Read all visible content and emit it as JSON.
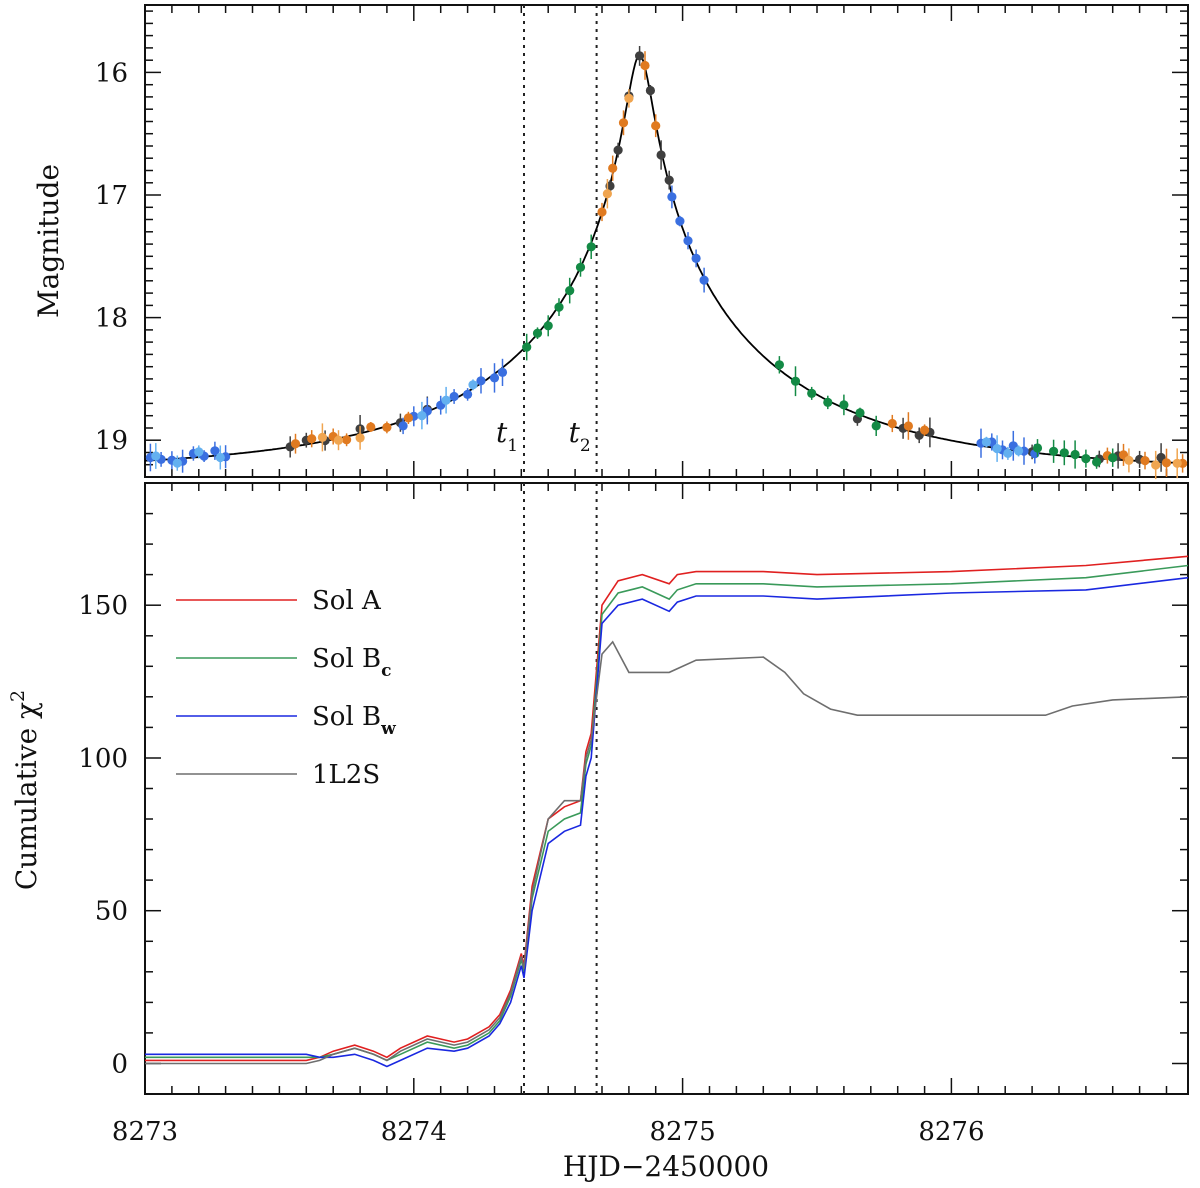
{
  "chart_data": [
    {
      "type": "scatter",
      "panel": "top",
      "ylabel": "Magnitude",
      "xlabel": "",
      "xlim": [
        8273.0,
        8276.88
      ],
      "ylim": [
        19.3,
        15.45
      ],
      "yticks": [
        16,
        17,
        18,
        19
      ],
      "ytick_labels": [
        "16",
        "17",
        "18",
        "19"
      ],
      "annotations": [
        {
          "id": "t1",
          "text": "t",
          "sub": "1",
          "x": 8274.41
        },
        {
          "id": "t2",
          "text": "t",
          "sub": "2",
          "x": 8274.68
        }
      ],
      "model_curve": {
        "name": "model",
        "color": "#000000",
        "t0": 8274.84,
        "u0": 0.044,
        "tE": 1.02,
        "mag_peak": 15.86
      },
      "series": [
        {
          "name": "dataset-gray",
          "color": "#3f3f3f",
          "x": [
            8273.54,
            8273.6,
            8273.67,
            8273.8,
            8273.95,
            8274.05,
            8274.73,
            8274.76,
            8274.8,
            8274.84,
            8274.88,
            8274.92,
            8274.95,
            8275.65,
            8275.82,
            8275.88,
            8275.92,
            8276.3,
            8276.55,
            8276.62,
            8276.7,
            8276.78
          ]
        },
        {
          "name": "dataset-blue",
          "color": "#3a6fe0",
          "x": [
            8273.02,
            8273.06,
            8273.1,
            8273.14,
            8273.18,
            8273.22,
            8273.26,
            8273.3,
            8273.96,
            8274.0,
            8274.05,
            8274.1,
            8274.15,
            8274.2,
            8274.25,
            8274.3,
            8274.33,
            8274.96,
            8274.99,
            8275.02,
            8275.05,
            8275.08,
            8276.11,
            8276.15,
            8276.19,
            8276.23,
            8276.27,
            8276.31
          ]
        },
        {
          "name": "dataset-light-blue",
          "color": "#63b0f0",
          "x": [
            8273.04,
            8273.12,
            8273.2,
            8273.28,
            8274.03,
            8274.12,
            8274.22,
            8276.13,
            8276.17,
            8276.21,
            8276.25
          ]
        },
        {
          "name": "dataset-orange",
          "color": "#e07a20",
          "x": [
            8273.56,
            8273.62,
            8273.7,
            8273.75,
            8273.84,
            8273.9,
            8273.98,
            8274.7,
            8274.74,
            8274.78,
            8274.86,
            8274.9,
            8275.78,
            8275.84,
            8275.9,
            8276.58,
            8276.64,
            8276.72,
            8276.8,
            8276.86
          ]
        },
        {
          "name": "dataset-light-orange",
          "color": "#f0a550",
          "x": [
            8273.66,
            8273.72,
            8273.8,
            8274.72,
            8274.8,
            8276.66,
            8276.76,
            8276.84
          ]
        },
        {
          "name": "dataset-green",
          "color": "#138a45",
          "x": [
            8274.42,
            8274.46,
            8274.5,
            8274.54,
            8274.58,
            8274.62,
            8274.66,
            8275.36,
            8275.42,
            8275.48,
            8275.54,
            8275.6,
            8275.66,
            8275.72,
            8276.32,
            8276.38,
            8276.42,
            8276.46,
            8276.5,
            8276.54,
            8276.6
          ]
        }
      ]
    },
    {
      "type": "line",
      "panel": "bottom",
      "xlabel": "HJD−2450000",
      "ylabel": "Cumulative χ",
      "ylabel_sup": "2",
      "xlim": [
        8273.0,
        8276.88
      ],
      "ylim": [
        -10,
        190
      ],
      "xticks": [
        8273,
        8274,
        8275,
        8276
      ],
      "xtick_labels": [
        "8273",
        "8274",
        "8275",
        "8276"
      ],
      "yticks": [
        0,
        50,
        100,
        150
      ],
      "ytick_labels": [
        "0",
        "50",
        "100",
        "150"
      ],
      "legend_position": "upper-left",
      "series": [
        {
          "name": "Sol A",
          "label_main": "Sol  A",
          "label_sub": "",
          "color": "#e02020",
          "x": [
            8273.0,
            8273.6,
            8273.65,
            8273.7,
            8273.78,
            8273.85,
            8273.9,
            8273.95,
            8274.05,
            8274.15,
            8274.2,
            8274.28,
            8274.32,
            8274.36,
            8274.4,
            8274.41,
            8274.44,
            8274.5,
            8274.56,
            8274.62,
            8274.64,
            8274.66,
            8274.7,
            8274.76,
            8274.85,
            8274.95,
            8274.98,
            8275.05,
            8275.3,
            8275.5,
            8276.0,
            8276.5,
            8276.88
          ],
          "values": [
            1,
            1,
            2,
            4,
            6,
            4,
            2,
            5,
            9,
            7,
            8,
            12,
            16,
            24,
            36,
            32,
            58,
            80,
            84,
            86,
            102,
            108,
            150,
            158,
            160,
            157,
            160,
            161,
            161,
            160,
            161,
            163,
            166
          ]
        },
        {
          "name": "Sol Bc",
          "label_main": "Sol  B",
          "label_sub": "c",
          "color": "#3a9a5a",
          "x": [
            8273.0,
            8273.6,
            8273.65,
            8273.7,
            8273.78,
            8273.85,
            8273.9,
            8273.95,
            8274.05,
            8274.15,
            8274.2,
            8274.28,
            8274.32,
            8274.36,
            8274.4,
            8274.41,
            8274.44,
            8274.5,
            8274.56,
            8274.62,
            8274.64,
            8274.66,
            8274.7,
            8274.76,
            8274.85,
            8274.95,
            8274.98,
            8275.05,
            8275.3,
            8275.5,
            8276.0,
            8276.5,
            8276.88
          ],
          "values": [
            2,
            2,
            2,
            3,
            5,
            3,
            1,
            3,
            7,
            5,
            6,
            10,
            14,
            22,
            34,
            30,
            54,
            76,
            80,
            82,
            98,
            104,
            147,
            154,
            156,
            152,
            155,
            157,
            157,
            156,
            157,
            159,
            163
          ]
        },
        {
          "name": "Sol Bw",
          "label_main": "Sol  B",
          "label_sub": "w",
          "color": "#1a28e0",
          "x": [
            8273.0,
            8273.6,
            8273.65,
            8273.7,
            8273.78,
            8273.85,
            8273.9,
            8273.95,
            8274.05,
            8274.15,
            8274.2,
            8274.28,
            8274.32,
            8274.36,
            8274.4,
            8274.41,
            8274.44,
            8274.5,
            8274.56,
            8274.62,
            8274.64,
            8274.66,
            8274.7,
            8274.76,
            8274.85,
            8274.95,
            8274.98,
            8275.05,
            8275.3,
            8275.5,
            8276.0,
            8276.5,
            8276.88
          ],
          "values": [
            3,
            3,
            2,
            2,
            3,
            1,
            -1,
            1,
            5,
            4,
            5,
            9,
            13,
            20,
            32,
            28,
            50,
            72,
            76,
            78,
            94,
            100,
            144,
            150,
            152,
            148,
            151,
            153,
            153,
            152,
            154,
            155,
            159
          ]
        },
        {
          "name": "1L2S",
          "label_main": "1L2S",
          "label_sub": "",
          "color": "#6e6e6e",
          "x": [
            8273.0,
            8273.6,
            8273.65,
            8273.7,
            8273.78,
            8273.85,
            8273.9,
            8273.95,
            8274.05,
            8274.15,
            8274.2,
            8274.28,
            8274.32,
            8274.36,
            8274.4,
            8274.41,
            8274.44,
            8274.5,
            8274.56,
            8274.62,
            8274.64,
            8274.66,
            8274.7,
            8274.74,
            8274.8,
            8274.95,
            8275.05,
            8275.3,
            8275.38,
            8275.45,
            8275.55,
            8275.65,
            8276.0,
            8276.35,
            8276.45,
            8276.6,
            8276.88
          ],
          "values": [
            0,
            0,
            1,
            3,
            5,
            3,
            1,
            4,
            8,
            6,
            7,
            11,
            15,
            23,
            35,
            31,
            56,
            80,
            86,
            86,
            100,
            106,
            134,
            138,
            128,
            128,
            132,
            133,
            128,
            121,
            116,
            114,
            114,
            114,
            117,
            119,
            120
          ]
        }
      ]
    }
  ]
}
